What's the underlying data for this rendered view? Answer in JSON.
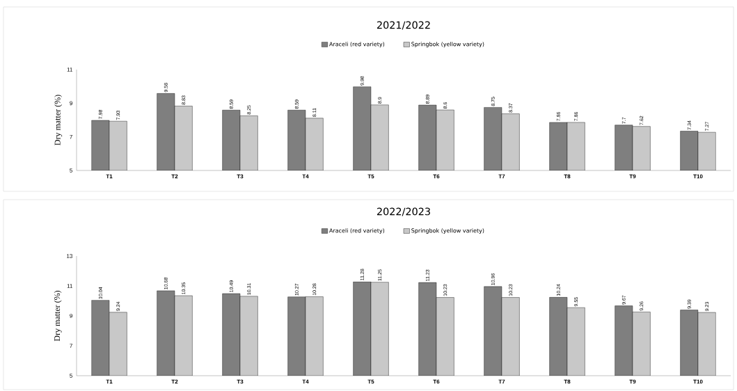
{
  "chart_data": [
    {
      "type": "bar",
      "title": "2021/2022",
      "ylabel": "Dry matter (%)",
      "categories": [
        "T1",
        "T2",
        "T3",
        "T4",
        "T5",
        "T6",
        "T7",
        "T8",
        "T9",
        "T10"
      ],
      "series": [
        {
          "name": "Araceli (red variety)",
          "color": "#7f7f7f",
          "values": [
            7.98,
            9.58,
            8.59,
            8.59,
            9.98,
            8.89,
            8.75,
            7.86,
            7.7,
            7.34
          ]
        },
        {
          "name": "Springbok (yellow variety)",
          "color": "#c8c8c8",
          "values": [
            7.93,
            8.83,
            8.25,
            8.11,
            8.9,
            8.6,
            8.37,
            7.86,
            7.62,
            7.27
          ]
        }
      ],
      "ylim": [
        5,
        11
      ],
      "yticks": [
        5,
        7,
        9,
        11
      ],
      "legend": "top",
      "data_labels": true
    },
    {
      "type": "bar",
      "title": "2022/2023",
      "ylabel": "Dry matter (%)",
      "categories": [
        "T1",
        "T2",
        "T3",
        "T4",
        "T5",
        "T6",
        "T7",
        "T8",
        "T9",
        "T10"
      ],
      "series": [
        {
          "name": "Araceli (red variety)",
          "color": "#7f7f7f",
          "values": [
            10.04,
            10.68,
            10.49,
            10.27,
            11.28,
            11.23,
            10.96,
            10.24,
            9.67,
            9.39
          ]
        },
        {
          "name": "Springbok (yellow variety)",
          "color": "#c8c8c8",
          "values": [
            9.24,
            10.35,
            10.31,
            10.28,
            11.25,
            10.23,
            10.23,
            9.55,
            9.26,
            9.23
          ]
        }
      ],
      "ylim": [
        5,
        13
      ],
      "yticks": [
        5,
        7,
        9,
        11,
        13
      ],
      "legend": "top",
      "data_labels": true
    }
  ]
}
